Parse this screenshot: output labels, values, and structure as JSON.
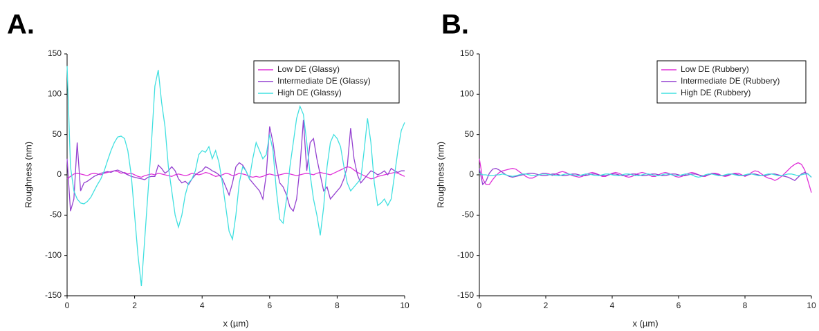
{
  "chart_data": [
    {
      "type": "line",
      "title": "A.",
      "xlabel": "x (µm)",
      "ylabel": "Roughness (nm)",
      "xlim": [
        0,
        10
      ],
      "ylim": [
        -150,
        150
      ],
      "xticks": [
        0,
        2,
        4,
        6,
        8,
        10
      ],
      "yticks": [
        -150,
        -100,
        -50,
        0,
        50,
        100,
        150
      ],
      "legend": "upper right",
      "x": [
        0,
        0.1,
        0.2,
        0.3,
        0.4,
        0.5,
        0.6,
        0.7,
        0.8,
        0.9,
        1,
        1.1,
        1.2,
        1.3,
        1.4,
        1.5,
        1.6,
        1.7,
        1.8,
        1.9,
        2,
        2.1,
        2.2,
        2.3,
        2.4,
        2.5,
        2.6,
        2.7,
        2.8,
        2.9,
        3,
        3.1,
        3.2,
        3.3,
        3.4,
        3.5,
        3.6,
        3.7,
        3.8,
        3.9,
        4,
        4.1,
        4.2,
        4.3,
        4.4,
        4.5,
        4.6,
        4.7,
        4.8,
        4.9,
        5,
        5.1,
        5.2,
        5.3,
        5.4,
        5.5,
        5.6,
        5.7,
        5.8,
        5.9,
        6,
        6.1,
        6.2,
        6.3,
        6.4,
        6.5,
        6.6,
        6.7,
        6.8,
        6.9,
        7,
        7.1,
        7.2,
        7.3,
        7.4,
        7.5,
        7.6,
        7.7,
        7.8,
        7.9,
        8,
        8.1,
        8.2,
        8.3,
        8.4,
        8.5,
        8.6,
        8.7,
        8.8,
        8.9,
        9,
        9.1,
        9.2,
        9.3,
        9.4,
        9.5,
        9.6,
        9.7,
        9.8,
        9.9,
        10
      ],
      "series": [
        {
          "name": "Low DE (Glassy)",
          "color": "#e030d8",
          "values": [
            -5,
            -2,
            1,
            2,
            1,
            0,
            -1,
            1,
            2,
            1,
            0,
            2,
            3,
            4,
            5,
            4,
            2,
            3,
            1,
            2,
            0,
            -2,
            -3,
            -1,
            0,
            1,
            0,
            2,
            1,
            0,
            -1,
            -2,
            0,
            1,
            0,
            -1,
            0,
            2,
            1,
            0,
            1,
            3,
            2,
            0,
            -2,
            -1,
            0,
            2,
            1,
            -1,
            0,
            2,
            1,
            0,
            -2,
            -3,
            -2,
            -3,
            -2,
            0,
            1,
            0,
            -1,
            0,
            1,
            2,
            1,
            0,
            -1,
            0,
            1,
            2,
            1,
            0,
            2,
            3,
            2,
            1,
            0,
            2,
            4,
            6,
            8,
            10,
            9,
            6,
            3,
            1,
            -1,
            -3,
            -5,
            -4,
            -2,
            -1,
            0,
            1,
            2,
            3,
            2,
            0,
            -2
          ]
        },
        {
          "name": "Intermediate DE (Glassy)",
          "color": "#9440d0",
          "values": [
            20,
            -45,
            -30,
            40,
            -20,
            -10,
            -8,
            -5,
            -2,
            0,
            2,
            3,
            4,
            3,
            5,
            6,
            4,
            2,
            0,
            -2,
            -3,
            -4,
            -5,
            -6,
            -3,
            -2,
            -2,
            12,
            8,
            2,
            5,
            10,
            5,
            -5,
            -10,
            -8,
            -12,
            -5,
            0,
            3,
            5,
            10,
            8,
            5,
            3,
            0,
            -5,
            -15,
            -25,
            -10,
            10,
            15,
            12,
            5,
            -5,
            -10,
            -15,
            -20,
            -30,
            0,
            60,
            40,
            10,
            -10,
            -15,
            -25,
            -40,
            -45,
            -30,
            10,
            68,
            5,
            40,
            45,
            20,
            0,
            -20,
            -15,
            -30,
            -25,
            -20,
            -15,
            -5,
            10,
            58,
            20,
            0,
            -10,
            -5,
            0,
            5,
            3,
            0,
            2,
            5,
            0,
            8,
            5,
            3,
            5,
            5
          ]
        },
        {
          "name": "High DE (Glassy)",
          "color": "#40e0e0",
          "values": [
            135,
            10,
            -20,
            -30,
            -35,
            -36,
            -33,
            -28,
            -20,
            -12,
            -5,
            5,
            18,
            30,
            40,
            47,
            48,
            45,
            30,
            0,
            -50,
            -100,
            -138,
            -80,
            -20,
            40,
            110,
            130,
            90,
            60,
            10,
            -20,
            -50,
            -65,
            -50,
            -25,
            -10,
            -5,
            5,
            25,
            30,
            28,
            35,
            20,
            30,
            15,
            -10,
            -40,
            -70,
            -80,
            -50,
            -10,
            10,
            5,
            -5,
            20,
            40,
            30,
            20,
            25,
            50,
            30,
            -20,
            -55,
            -60,
            -30,
            10,
            40,
            70,
            85,
            75,
            40,
            0,
            -30,
            -50,
            -75,
            -40,
            10,
            40,
            50,
            45,
            35,
            10,
            -10,
            -20,
            -15,
            -10,
            -5,
            30,
            70,
            40,
            -10,
            -38,
            -35,
            -30,
            -38,
            -30,
            0,
            30,
            55,
            65
          ]
        }
      ]
    },
    {
      "type": "line",
      "title": "B.",
      "xlabel": "x (µm)",
      "ylabel": "Roughness (nm)",
      "xlim": [
        0,
        10
      ],
      "ylim": [
        -150,
        150
      ],
      "xticks": [
        0,
        2,
        4,
        6,
        8,
        10
      ],
      "yticks": [
        -150,
        -100,
        -50,
        0,
        50,
        100,
        150
      ],
      "legend": "upper right",
      "x": [
        0,
        0.1,
        0.2,
        0.3,
        0.4,
        0.5,
        0.6,
        0.7,
        0.8,
        0.9,
        1,
        1.1,
        1.2,
        1.3,
        1.4,
        1.5,
        1.6,
        1.7,
        1.8,
        1.9,
        2,
        2.1,
        2.2,
        2.3,
        2.4,
        2.5,
        2.6,
        2.7,
        2.8,
        2.9,
        3,
        3.1,
        3.2,
        3.3,
        3.4,
        3.5,
        3.6,
        3.7,
        3.8,
        3.9,
        4,
        4.1,
        4.2,
        4.3,
        4.4,
        4.5,
        4.6,
        4.7,
        4.8,
        4.9,
        5,
        5.1,
        5.2,
        5.3,
        5.4,
        5.5,
        5.6,
        5.7,
        5.8,
        5.9,
        6,
        6.1,
        6.2,
        6.3,
        6.4,
        6.5,
        6.6,
        6.7,
        6.8,
        6.9,
        7,
        7.1,
        7.2,
        7.3,
        7.4,
        7.5,
        7.6,
        7.7,
        7.8,
        7.9,
        8,
        8.1,
        8.2,
        8.3,
        8.4,
        8.5,
        8.6,
        8.7,
        8.8,
        8.9,
        9,
        9.1,
        9.2,
        9.3,
        9.4,
        9.5,
        9.6,
        9.7,
        9.8,
        9.9,
        10
      ],
      "series": [
        {
          "name": "Low DE (Rubbery)",
          "color": "#e030d8",
          "values": [
            20,
            -5,
            -12,
            -12,
            -6,
            -1,
            3,
            5,
            6,
            7,
            8,
            7,
            4,
            1,
            -2,
            -4,
            -4,
            -2,
            0,
            2,
            2,
            1,
            -1,
            1,
            3,
            4,
            3,
            1,
            -1,
            -2,
            -3,
            -2,
            0,
            2,
            3,
            2,
            0,
            -2,
            -2,
            0,
            2,
            3,
            2,
            0,
            -2,
            -3,
            -2,
            0,
            2,
            3,
            2,
            0,
            -2,
            -2,
            0,
            2,
            3,
            2,
            0,
            -2,
            -3,
            -2,
            0,
            2,
            3,
            2,
            0,
            -2,
            -2,
            0,
            2,
            2,
            1,
            -1,
            -2,
            -1,
            1,
            2,
            2,
            0,
            -2,
            0,
            3,
            5,
            4,
            1,
            -2,
            -4,
            -5,
            -7,
            -5,
            -2,
            2,
            6,
            10,
            13,
            15,
            13,
            6,
            -8,
            -22
          ]
        },
        {
          "name": "Intermediate DE (Rubbery)",
          "color": "#9440d0",
          "values": [
            8,
            -12,
            -8,
            2,
            7,
            8,
            6,
            3,
            0,
            -2,
            -3,
            -2,
            -1,
            0,
            1,
            2,
            2,
            1,
            0,
            -1,
            -1,
            0,
            1,
            1,
            0,
            -1,
            -1,
            0,
            1,
            1,
            0,
            -1,
            -1,
            0,
            1,
            1,
            0,
            -1,
            -1,
            0,
            1,
            1,
            0,
            -1,
            -1,
            0,
            1,
            1,
            0,
            -1,
            -1,
            0,
            1,
            1,
            0,
            -1,
            -1,
            0,
            1,
            1,
            0,
            -1,
            -1,
            0,
            1,
            1,
            0,
            -1,
            -1,
            0,
            1,
            1,
            0,
            -1,
            -1,
            0,
            1,
            1,
            0,
            -1,
            -1,
            0,
            1,
            1,
            0,
            -1,
            -1,
            0,
            1,
            1,
            0,
            -1,
            -2,
            -3,
            -5,
            -7,
            -3,
            1,
            3,
            1,
            -3
          ]
        },
        {
          "name": "High DE (Rubbery)",
          "color": "#40e0e0",
          "values": [
            2,
            0,
            0,
            -1,
            -1,
            0,
            0,
            1,
            0,
            -1,
            -2,
            -1,
            0,
            1,
            1,
            0,
            -1,
            -1,
            0,
            1,
            1,
            0,
            0,
            -1,
            -1,
            0,
            1,
            1,
            0,
            -1,
            -1,
            0,
            1,
            1,
            0,
            -1,
            -1,
            0,
            1,
            1,
            0,
            -1,
            -1,
            0,
            1,
            1,
            0,
            -1,
            -1,
            0,
            1,
            1,
            0,
            -1,
            -1,
            0,
            1,
            1,
            0,
            -1,
            -1,
            0,
            1,
            1,
            0,
            -2,
            -3,
            -2,
            0,
            1,
            1,
            0,
            -1,
            -1,
            0,
            1,
            1,
            0,
            -1,
            -1,
            0,
            1,
            1,
            0,
            -1,
            -1,
            0,
            1,
            1,
            0,
            -1,
            -1,
            0,
            1,
            1,
            0,
            -1,
            0,
            1,
            1,
            -3
          ]
        }
      ]
    }
  ]
}
